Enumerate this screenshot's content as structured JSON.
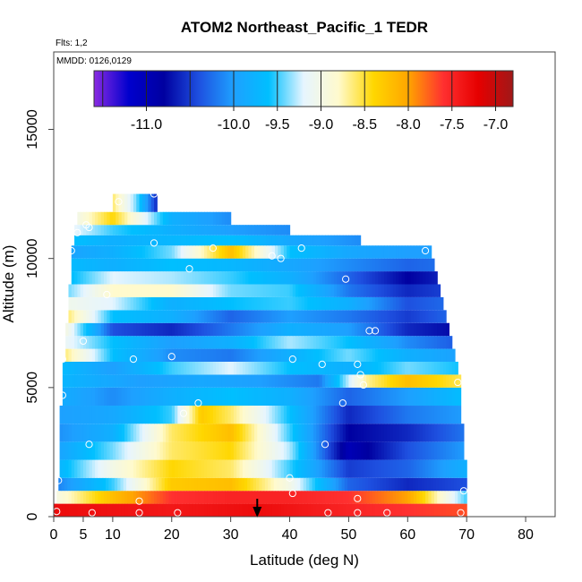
{
  "chart_data": {
    "type": "heatmap",
    "title": "ATOM2 Northeast_Pacific_1 TEDR",
    "flights_label": "Flts: 1,2",
    "dates_label": "MMDD: 0126,0129",
    "xlabel": "Latitude (deg N)",
    "ylabel": "Altitude (m)",
    "xlim": [
      0,
      85
    ],
    "ylim": [
      0,
      18000
    ],
    "x_ticks": [
      "0",
      "5",
      "10",
      "20",
      "30",
      "40",
      "50",
      "60",
      "70",
      "80"
    ],
    "y_ticks": [
      "0",
      "5000",
      "10000",
      "15000"
    ],
    "colorbar": {
      "range": [
        -11.6,
        -6.8
      ],
      "tick_labels": [
        "-11.0",
        "-10.0",
        "-9.5",
        "-9.0",
        "-8.5",
        "-8.0",
        "-7.5",
        "-7.0"
      ],
      "tick_values": [
        -11.0,
        -10.0,
        -9.5,
        -9.0,
        -8.5,
        -8.0,
        -7.5,
        -7.0
      ],
      "stops": [
        "#8a2be2",
        "#0000cd",
        "#0000a0",
        "#1e50e0",
        "#1ea0ff",
        "#00bfff",
        "#e6f5ff",
        "#fffacd",
        "#ffd700",
        "#ffa500",
        "#ff3030",
        "#e60000",
        "#a01818"
      ]
    },
    "layers": [
      {
        "alt_bottom": 0,
        "alt_top": 500,
        "lat_start": 0,
        "lat_end": 70,
        "values": [
          [
            0,
            -7.3
          ],
          [
            20,
            -7.4
          ],
          [
            35,
            -7.3
          ],
          [
            50,
            -7.5
          ],
          [
            60,
            -7.6
          ],
          [
            70,
            -7.7
          ]
        ]
      },
      {
        "alt_bottom": 500,
        "alt_top": 1000,
        "lat_start": 0.5,
        "lat_end": 70,
        "values": [
          [
            0,
            -9.0
          ],
          [
            10,
            -8.2
          ],
          [
            20,
            -7.6
          ],
          [
            30,
            -7.5
          ],
          [
            40,
            -7.5
          ],
          [
            50,
            -7.6
          ],
          [
            60,
            -8.0
          ],
          [
            70,
            -9.5
          ]
        ]
      },
      {
        "alt_bottom": 1000,
        "alt_top": 1500,
        "lat_start": 0.8,
        "lat_end": 70,
        "values": [
          [
            0,
            -10.2
          ],
          [
            10,
            -9.5
          ],
          [
            20,
            -8.3
          ],
          [
            30,
            -8.2
          ],
          [
            40,
            -9.0
          ],
          [
            50,
            -10.3
          ],
          [
            60,
            -10.6
          ],
          [
            70,
            -10.4
          ]
        ]
      },
      {
        "alt_bottom": 1500,
        "alt_top": 2200,
        "lat_start": 1,
        "lat_end": 70,
        "values": [
          [
            0,
            -9.8
          ],
          [
            10,
            -9.0
          ],
          [
            20,
            -8.4
          ],
          [
            30,
            -8.6
          ],
          [
            40,
            -9.5
          ],
          [
            50,
            -10.5
          ],
          [
            60,
            -10.3
          ],
          [
            70,
            -9.8
          ]
        ]
      },
      {
        "alt_bottom": 2200,
        "alt_top": 2900,
        "lat_start": 1,
        "lat_end": 69.5,
        "values": [
          [
            0,
            -10.0
          ],
          [
            10,
            -9.4
          ],
          [
            20,
            -8.6
          ],
          [
            30,
            -8.4
          ],
          [
            40,
            -9.3
          ],
          [
            50,
            -11.0
          ],
          [
            60,
            -10.4
          ],
          [
            70,
            -10.0
          ]
        ]
      },
      {
        "alt_bottom": 2900,
        "alt_top": 3600,
        "lat_start": 1,
        "lat_end": 69.5,
        "values": [
          [
            0,
            -10.1
          ],
          [
            10,
            -9.8
          ],
          [
            20,
            -8.6
          ],
          [
            30,
            -8.2
          ],
          [
            40,
            -9.5
          ],
          [
            50,
            -10.8
          ],
          [
            60,
            -10.6
          ],
          [
            70,
            -10.2
          ]
        ]
      },
      {
        "alt_bottom": 3600,
        "alt_top": 4300,
        "lat_start": 1,
        "lat_end": 69,
        "values": [
          [
            0,
            -10.0
          ],
          [
            10,
            -9.9
          ],
          [
            20,
            -9.5
          ],
          [
            25,
            -8.3
          ],
          [
            30,
            -8.6
          ],
          [
            40,
            -9.6
          ],
          [
            50,
            -10.6
          ],
          [
            60,
            -10.2
          ],
          [
            70,
            -10.0
          ]
        ]
      },
      {
        "alt_bottom": 4300,
        "alt_top": 5000,
        "lat_start": 1.5,
        "lat_end": 69,
        "values": [
          [
            0,
            -9.8
          ],
          [
            10,
            -10.1
          ],
          [
            20,
            -9.8
          ],
          [
            30,
            -9.6
          ],
          [
            40,
            -9.8
          ],
          [
            50,
            -10.3
          ],
          [
            60,
            -10.0
          ],
          [
            70,
            -9.6
          ]
        ]
      },
      {
        "alt_bottom": 5000,
        "alt_top": 5500,
        "lat_start": 1.5,
        "lat_end": 69,
        "values": [
          [
            0,
            -9.7
          ],
          [
            15,
            -10.0
          ],
          [
            25,
            -9.9
          ],
          [
            35,
            -10.0
          ],
          [
            45,
            -10.2
          ],
          [
            53,
            -8.7
          ],
          [
            60,
            -8.2
          ],
          [
            70,
            -8.6
          ]
        ]
      },
      {
        "alt_bottom": 5500,
        "alt_top": 6000,
        "lat_start": 1.5,
        "lat_end": 68.5,
        "values": [
          [
            0,
            -9.6
          ],
          [
            10,
            -10.0
          ],
          [
            20,
            -9.5
          ],
          [
            30,
            -9.2
          ],
          [
            40,
            -9.6
          ],
          [
            50,
            -9.8
          ],
          [
            60,
            -9.4
          ],
          [
            70,
            -9.6
          ]
        ]
      },
      {
        "alt_bottom": 6000,
        "alt_top": 6500,
        "lat_start": 2,
        "lat_end": 68,
        "values": [
          [
            0,
            -8.4
          ],
          [
            10,
            -9.6
          ],
          [
            20,
            -10.1
          ],
          [
            30,
            -10.2
          ],
          [
            40,
            -9.8
          ],
          [
            50,
            -9.4
          ],
          [
            60,
            -9.8
          ],
          [
            70,
            -10.0
          ]
        ]
      },
      {
        "alt_bottom": 6500,
        "alt_top": 7000,
        "lat_start": 2,
        "lat_end": 67.5,
        "values": [
          [
            0,
            -9.0
          ],
          [
            10,
            -9.6
          ],
          [
            20,
            -10.0
          ],
          [
            30,
            -9.8
          ],
          [
            40,
            -9.3
          ],
          [
            50,
            -9.6
          ],
          [
            60,
            -10.1
          ],
          [
            70,
            -10.4
          ]
        ]
      },
      {
        "alt_bottom": 7000,
        "alt_top": 7500,
        "lat_start": 2,
        "lat_end": 67,
        "values": [
          [
            0,
            -8.6
          ],
          [
            10,
            -10.4
          ],
          [
            20,
            -10.6
          ],
          [
            30,
            -10.2
          ],
          [
            40,
            -9.8
          ],
          [
            50,
            -10.0
          ],
          [
            60,
            -10.6
          ],
          [
            70,
            -10.8
          ]
        ]
      },
      {
        "alt_bottom": 7500,
        "alt_top": 8000,
        "lat_start": 2.5,
        "lat_end": 66.5,
        "values": [
          [
            0,
            -8.3
          ],
          [
            10,
            -9.6
          ],
          [
            20,
            -9.8
          ],
          [
            30,
            -10.3
          ],
          [
            40,
            -10.0
          ],
          [
            50,
            -10.2
          ],
          [
            60,
            -10.5
          ],
          [
            70,
            -10.2
          ]
        ]
      },
      {
        "alt_bottom": 8000,
        "alt_top": 8500,
        "lat_start": 2.5,
        "lat_end": 66,
        "values": [
          [
            0,
            -9.0
          ],
          [
            10,
            -9.2
          ],
          [
            20,
            -9.8
          ],
          [
            30,
            -9.6
          ],
          [
            40,
            -9.5
          ],
          [
            50,
            -9.8
          ],
          [
            60,
            -10.4
          ],
          [
            70,
            -10.2
          ]
        ]
      },
      {
        "alt_bottom": 8500,
        "alt_top": 9000,
        "lat_start": 2.5,
        "lat_end": 65.5,
        "values": [
          [
            0,
            -9.6
          ],
          [
            10,
            -8.8
          ],
          [
            20,
            -8.8
          ],
          [
            30,
            -9.4
          ],
          [
            40,
            -9.5
          ],
          [
            50,
            -10.2
          ],
          [
            60,
            -10.6
          ],
          [
            70,
            -10.4
          ]
        ]
      },
      {
        "alt_bottom": 9000,
        "alt_top": 9500,
        "lat_start": 3,
        "lat_end": 65,
        "values": [
          [
            0,
            -9.8
          ],
          [
            10,
            -9.2
          ],
          [
            20,
            -9.3
          ],
          [
            30,
            -9.5
          ],
          [
            40,
            -9.8
          ],
          [
            50,
            -10.3
          ],
          [
            60,
            -10.8
          ],
          [
            70,
            -10.5
          ]
        ]
      },
      {
        "alt_bottom": 9500,
        "alt_top": 10000,
        "lat_start": 3,
        "lat_end": 64.5,
        "values": [
          [
            0,
            -9.6
          ],
          [
            10,
            -9.8
          ],
          [
            20,
            -9.6
          ],
          [
            30,
            -9.7
          ],
          [
            40,
            -9.9
          ],
          [
            50,
            -10.1
          ],
          [
            60,
            -10.3
          ],
          [
            70,
            -10.2
          ]
        ]
      },
      {
        "alt_bottom": 10000,
        "alt_top": 10500,
        "lat_start": 3,
        "lat_end": 64,
        "values": [
          [
            0,
            -10.0
          ],
          [
            10,
            -9.8
          ],
          [
            20,
            -9.4
          ],
          [
            30,
            -8.2
          ],
          [
            40,
            -9.6
          ],
          [
            50,
            -9.9
          ],
          [
            60,
            -10.0
          ],
          [
            70,
            -10.0
          ]
        ]
      },
      {
        "alt_bottom": 10500,
        "alt_top": 10900,
        "lat_start": 3.5,
        "lat_end": 52,
        "values": [
          [
            0,
            -9.5
          ],
          [
            10,
            -9.8
          ],
          [
            20,
            -9.7
          ],
          [
            30,
            -9.6
          ],
          [
            40,
            -9.9
          ],
          [
            52,
            -10.1
          ]
        ]
      },
      {
        "alt_bottom": 10900,
        "alt_top": 11300,
        "lat_start": 3.5,
        "lat_end": 40,
        "values": [
          [
            0,
            -9.0
          ],
          [
            10,
            -9.5
          ],
          [
            20,
            -9.8
          ],
          [
            30,
            -10.0
          ],
          [
            40,
            -10.1
          ]
        ]
      },
      {
        "alt_bottom": 11300,
        "alt_top": 11800,
        "lat_start": 4,
        "lat_end": 30,
        "values": [
          [
            0,
            -9.4
          ],
          [
            10,
            -8.4
          ],
          [
            20,
            -9.8
          ],
          [
            30,
            -10.1
          ]
        ]
      },
      {
        "alt_bottom": 11800,
        "alt_top": 12500,
        "lat_start": 10,
        "lat_end": 17.5,
        "values": [
          [
            10,
            -8.6
          ],
          [
            14,
            -9.4
          ],
          [
            17.5,
            -10.6
          ]
        ]
      }
    ],
    "sample_points": [
      [
        0.5,
        200
      ],
      [
        6.5,
        150
      ],
      [
        14.5,
        150
      ],
      [
        21,
        150
      ],
      [
        46.5,
        150
      ],
      [
        51.5,
        150
      ],
      [
        56.5,
        150
      ],
      [
        69,
        150
      ],
      [
        14.5,
        600
      ],
      [
        40.5,
        900
      ],
      [
        51.5,
        700
      ],
      [
        69.5,
        1000
      ],
      [
        0.8,
        1400
      ],
      [
        40,
        1500
      ],
      [
        46,
        2800
      ],
      [
        6,
        2800
      ],
      [
        22,
        4000
      ],
      [
        24.5,
        4400
      ],
      [
        49,
        4400
      ],
      [
        1.5,
        4700
      ],
      [
        1.5,
        6100
      ],
      [
        13.5,
        6100
      ],
      [
        20,
        6200
      ],
      [
        40.5,
        6100
      ],
      [
        45.5,
        5900
      ],
      [
        51.5,
        5900
      ],
      [
        52,
        5500
      ],
      [
        52.5,
        5100
      ],
      [
        68.5,
        5200
      ],
      [
        5,
        6800
      ],
      [
        53.5,
        7200
      ],
      [
        54.5,
        7200
      ],
      [
        9,
        8600
      ],
      [
        49.5,
        9200
      ],
      [
        23,
        9600
      ],
      [
        38.5,
        10000
      ],
      [
        37,
        10100
      ],
      [
        3,
        10300
      ],
      [
        17,
        10600
      ],
      [
        27,
        10400
      ],
      [
        42,
        10400
      ],
      [
        63,
        10300
      ],
      [
        4,
        11000
      ],
      [
        6,
        11200
      ],
      [
        5.5,
        11300
      ],
      [
        11,
        12200
      ],
      [
        17,
        12500
      ]
    ],
    "marker_latitude": 34.5,
    "grid": false
  }
}
